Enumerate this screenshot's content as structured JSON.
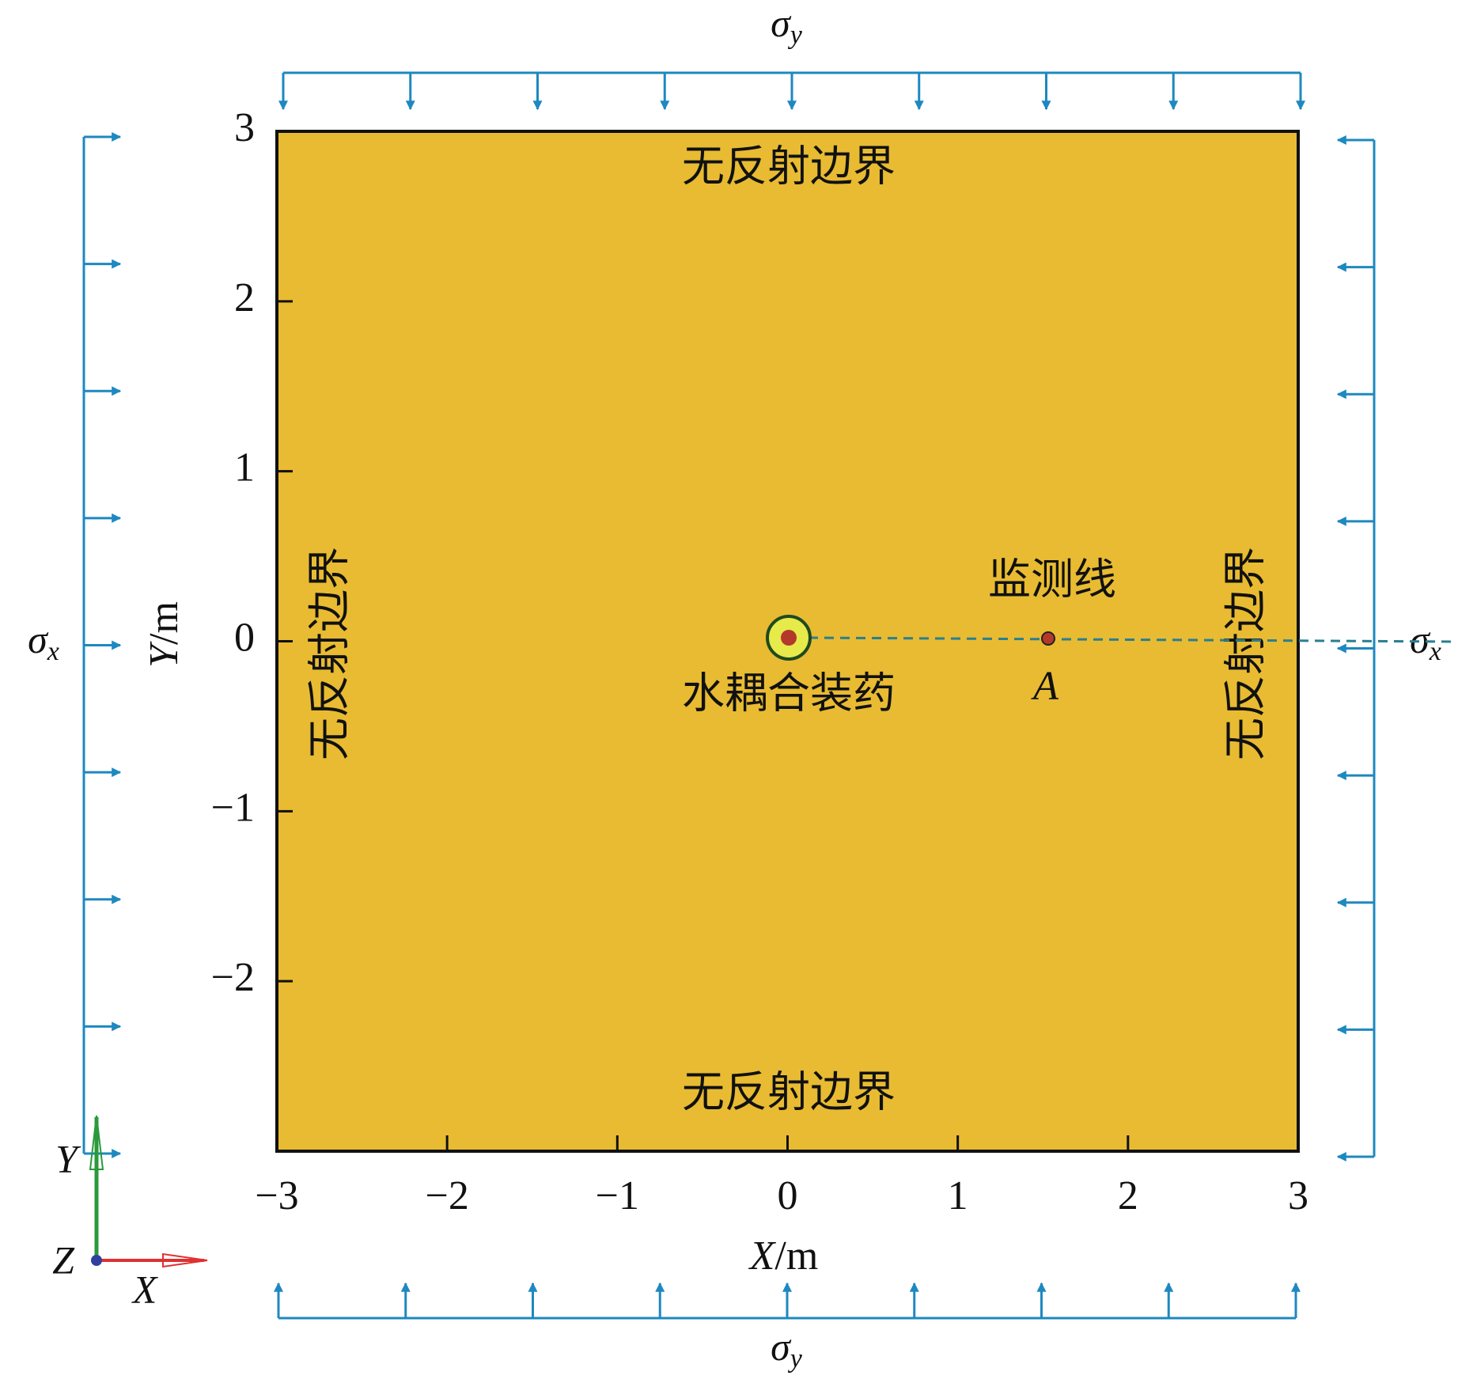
{
  "diagram": {
    "load_top": {
      "symbol": "σ",
      "subscript": "y"
    },
    "load_bottom": {
      "symbol": "σ",
      "subscript": "y"
    },
    "load_left": {
      "symbol": "σ",
      "subscript": "x"
    },
    "load_right": {
      "symbol": "σ",
      "subscript": "x"
    },
    "boundary_top": "无反射边界",
    "boundary_bottom": "无反射边界",
    "boundary_left": "无反射边界",
    "boundary_right": "无反射边界",
    "monitor_line": "监测线",
    "charge": "水耦合装药",
    "point": "A",
    "xaxis": {
      "var": "X",
      "unit": "/m",
      "lim": [
        -3,
        3
      ],
      "ticks": [
        {
          "value": -3,
          "label": "−3"
        },
        {
          "value": -2,
          "label": "−2"
        },
        {
          "value": -1,
          "label": "−1"
        },
        0,
        1,
        2,
        3
      ]
    },
    "yaxis": {
      "var": "Y",
      "unit": "/m",
      "lim": [
        -3,
        3
      ],
      "ticks": [
        {
          "value": -2,
          "label": "−2"
        },
        {
          "value": -1,
          "label": "−1"
        },
        0,
        1,
        2,
        3
      ]
    },
    "triad": {
      "y": "Y",
      "z": "Z",
      "x": "X"
    }
  }
}
